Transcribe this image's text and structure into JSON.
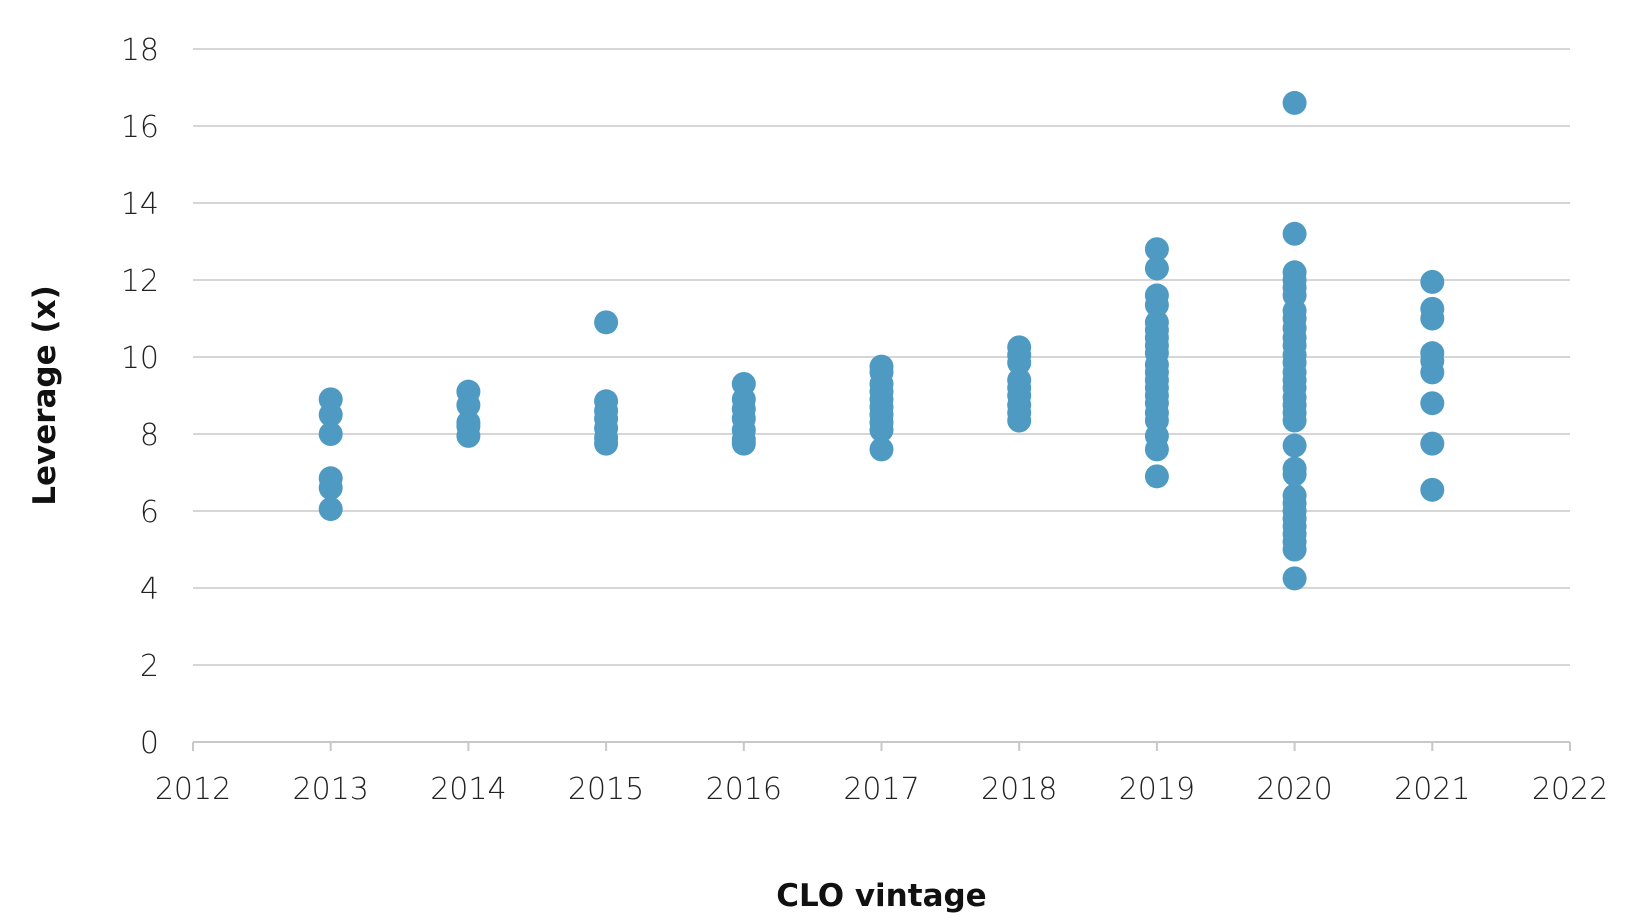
{
  "chart_data": {
    "type": "scatter",
    "title": "",
    "xlabel": "CLO vintage",
    "ylabel": "Leverage (x)",
    "xlim": [
      2012,
      2022
    ],
    "ylim": [
      0,
      18
    ],
    "x_ticks": [
      "2012",
      "2013",
      "2014",
      "2015",
      "2016",
      "2017",
      "2018",
      "2019",
      "2020",
      "2021",
      "2022"
    ],
    "y_ticks": [
      "0",
      "2",
      "4",
      "6",
      "8",
      "10",
      "12",
      "14",
      "16",
      "18"
    ],
    "grid": true,
    "legend": "none",
    "color": "#4e9ac3",
    "series": [
      {
        "points": [
          {
            "x": 2013,
            "y": 8.9
          },
          {
            "x": 2013,
            "y": 8.5
          },
          {
            "x": 2013,
            "y": 8.0
          },
          {
            "x": 2013,
            "y": 6.85
          },
          {
            "x": 2013,
            "y": 6.6
          },
          {
            "x": 2013,
            "y": 6.05
          },
          {
            "x": 2014,
            "y": 9.1
          },
          {
            "x": 2014,
            "y": 8.75
          },
          {
            "x": 2014,
            "y": 8.3
          },
          {
            "x": 2014,
            "y": 8.2
          },
          {
            "x": 2014,
            "y": 7.95
          },
          {
            "x": 2015,
            "y": 10.9
          },
          {
            "x": 2015,
            "y": 8.85
          },
          {
            "x": 2015,
            "y": 8.6
          },
          {
            "x": 2015,
            "y": 8.4
          },
          {
            "x": 2015,
            "y": 8.15
          },
          {
            "x": 2015,
            "y": 7.9
          },
          {
            "x": 2015,
            "y": 7.75
          },
          {
            "x": 2016,
            "y": 9.3
          },
          {
            "x": 2016,
            "y": 8.9
          },
          {
            "x": 2016,
            "y": 8.65
          },
          {
            "x": 2016,
            "y": 8.4
          },
          {
            "x": 2016,
            "y": 8.1
          },
          {
            "x": 2016,
            "y": 7.85
          },
          {
            "x": 2016,
            "y": 7.75
          },
          {
            "x": 2017,
            "y": 9.75
          },
          {
            "x": 2017,
            "y": 9.6
          },
          {
            "x": 2017,
            "y": 9.3
          },
          {
            "x": 2017,
            "y": 9.1
          },
          {
            "x": 2017,
            "y": 8.9
          },
          {
            "x": 2017,
            "y": 8.7
          },
          {
            "x": 2017,
            "y": 8.5
          },
          {
            "x": 2017,
            "y": 8.3
          },
          {
            "x": 2017,
            "y": 8.1
          },
          {
            "x": 2017,
            "y": 7.6
          },
          {
            "x": 2018,
            "y": 10.25
          },
          {
            "x": 2018,
            "y": 10.05
          },
          {
            "x": 2018,
            "y": 9.85
          },
          {
            "x": 2018,
            "y": 9.4
          },
          {
            "x": 2018,
            "y": 9.2
          },
          {
            "x": 2018,
            "y": 9.0
          },
          {
            "x": 2018,
            "y": 8.75
          },
          {
            "x": 2018,
            "y": 8.55
          },
          {
            "x": 2018,
            "y": 8.35
          },
          {
            "x": 2019,
            "y": 12.8
          },
          {
            "x": 2019,
            "y": 12.3
          },
          {
            "x": 2019,
            "y": 11.6
          },
          {
            "x": 2019,
            "y": 11.35
          },
          {
            "x": 2019,
            "y": 10.9
          },
          {
            "x": 2019,
            "y": 10.7
          },
          {
            "x": 2019,
            "y": 10.5
          },
          {
            "x": 2019,
            "y": 10.3
          },
          {
            "x": 2019,
            "y": 10.1
          },
          {
            "x": 2019,
            "y": 9.8
          },
          {
            "x": 2019,
            "y": 9.6
          },
          {
            "x": 2019,
            "y": 9.4
          },
          {
            "x": 2019,
            "y": 9.2
          },
          {
            "x": 2019,
            "y": 9.0
          },
          {
            "x": 2019,
            "y": 8.8
          },
          {
            "x": 2019,
            "y": 8.55
          },
          {
            "x": 2019,
            "y": 8.35
          },
          {
            "x": 2019,
            "y": 7.95
          },
          {
            "x": 2019,
            "y": 7.6
          },
          {
            "x": 2019,
            "y": 6.9
          },
          {
            "x": 2020,
            "y": 16.6
          },
          {
            "x": 2020,
            "y": 13.2
          },
          {
            "x": 2020,
            "y": 12.2
          },
          {
            "x": 2020,
            "y": 12.0
          },
          {
            "x": 2020,
            "y": 11.8
          },
          {
            "x": 2020,
            "y": 11.6
          },
          {
            "x": 2020,
            "y": 11.2
          },
          {
            "x": 2020,
            "y": 11.0
          },
          {
            "x": 2020,
            "y": 10.75
          },
          {
            "x": 2020,
            "y": 10.5
          },
          {
            "x": 2020,
            "y": 10.3
          },
          {
            "x": 2020,
            "y": 10.05
          },
          {
            "x": 2020,
            "y": 9.85
          },
          {
            "x": 2020,
            "y": 9.6
          },
          {
            "x": 2020,
            "y": 9.4
          },
          {
            "x": 2020,
            "y": 9.2
          },
          {
            "x": 2020,
            "y": 8.95
          },
          {
            "x": 2020,
            "y": 8.75
          },
          {
            "x": 2020,
            "y": 8.55
          },
          {
            "x": 2020,
            "y": 8.35
          },
          {
            "x": 2020,
            "y": 7.7
          },
          {
            "x": 2020,
            "y": 7.1
          },
          {
            "x": 2020,
            "y": 6.95
          },
          {
            "x": 2020,
            "y": 6.4
          },
          {
            "x": 2020,
            "y": 6.2
          },
          {
            "x": 2020,
            "y": 6.0
          },
          {
            "x": 2020,
            "y": 5.8
          },
          {
            "x": 2020,
            "y": 5.6
          },
          {
            "x": 2020,
            "y": 5.4
          },
          {
            "x": 2020,
            "y": 5.2
          },
          {
            "x": 2020,
            "y": 5.0
          },
          {
            "x": 2020,
            "y": 4.25
          },
          {
            "x": 2021,
            "y": 11.95
          },
          {
            "x": 2021,
            "y": 11.25
          },
          {
            "x": 2021,
            "y": 11.0
          },
          {
            "x": 2021,
            "y": 10.1
          },
          {
            "x": 2021,
            "y": 9.9
          },
          {
            "x": 2021,
            "y": 9.6
          },
          {
            "x": 2021,
            "y": 8.8
          },
          {
            "x": 2021,
            "y": 7.75
          },
          {
            "x": 2021,
            "y": 6.55
          }
        ]
      }
    ]
  }
}
